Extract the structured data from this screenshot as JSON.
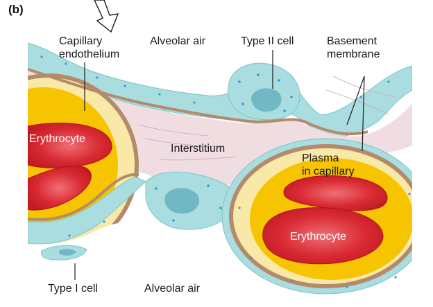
{
  "panel_label": "(b)",
  "labels": {
    "capillary_endothelium_1": "Capillary",
    "capillary_endothelium_2": "endothelium",
    "alveolar_air_top": "Alveolar air",
    "type2_cell": "Type II cell",
    "basement_membrane_1": "Basement",
    "basement_membrane_2": "membrane",
    "erythrocyte_left": "Erythrocyte",
    "interstitium": "Interstitium",
    "plasma_1": "Plasma",
    "plasma_2": "in capillary",
    "erythrocyte_right": "Erythrocyte",
    "type1_cell": "Type I cell",
    "alveolar_air_bottom": "Alveolar air"
  },
  "colors": {
    "alveolar_epithelium": "#a9dde0",
    "epithelium_dots": "#2f9bd6",
    "basement_membrane": "#b48a6a",
    "interstitium": "#efdde1",
    "plasma": "#f6c400",
    "plasma_light": "#f8e9a8",
    "erythrocyte": "#d3222c",
    "erythrocyte_center": "#e8525a"
  }
}
